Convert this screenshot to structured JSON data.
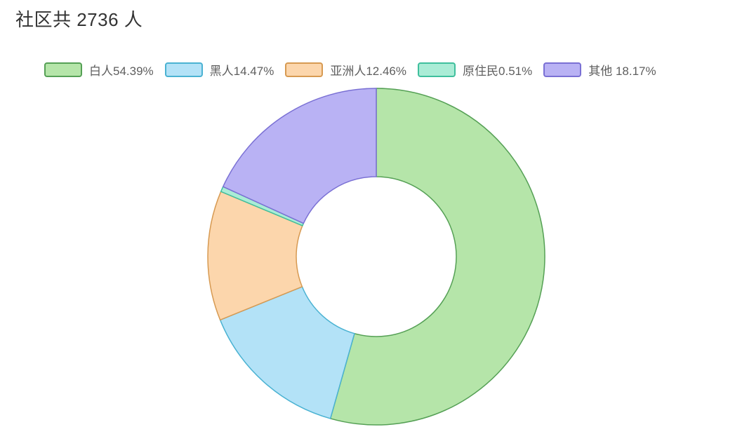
{
  "page": {
    "title": "社区共 2736 人",
    "background_color": "#ffffff",
    "title_color": "#333333",
    "legend_text_color": "#5e5e5e"
  },
  "chart_data": {
    "type": "pie",
    "subtype": "donut",
    "title": "社区共 2736 人",
    "total_people": 2736,
    "unit": "人",
    "legend_position": "top",
    "start_angle_deg_clockwise_from_top": 0,
    "categories": [
      "白人",
      "黑人",
      "亚洲人",
      "原住民",
      "其他"
    ],
    "values_pct": [
      54.39,
      14.47,
      12.46,
      0.51,
      18.17
    ],
    "slices": [
      {
        "key": "white",
        "name": "白人",
        "value_pct": 54.39,
        "legend_label": "白人54.39%",
        "fill": "#b5e5a9",
        "stroke": "#55a055"
      },
      {
        "key": "black",
        "name": "黑人",
        "value_pct": 14.47,
        "legend_label": "黑人14.47%",
        "fill": "#b3e2f7",
        "stroke": "#4ab2d2"
      },
      {
        "key": "asian",
        "name": "亚洲人",
        "value_pct": 12.46,
        "legend_label": "亚洲人12.46%",
        "fill": "#fcd6ac",
        "stroke": "#d79a52"
      },
      {
        "key": "native",
        "name": "原住民",
        "value_pct": 0.51,
        "legend_label": "原住民0.51%",
        "fill": "#aaecd6",
        "stroke": "#3fbf9d"
      },
      {
        "key": "other",
        "name": "其他",
        "value_pct": 18.17,
        "legend_label": "其他 18.17%",
        "fill": "#b9b2f4",
        "stroke": "#7a70d4"
      }
    ]
  }
}
